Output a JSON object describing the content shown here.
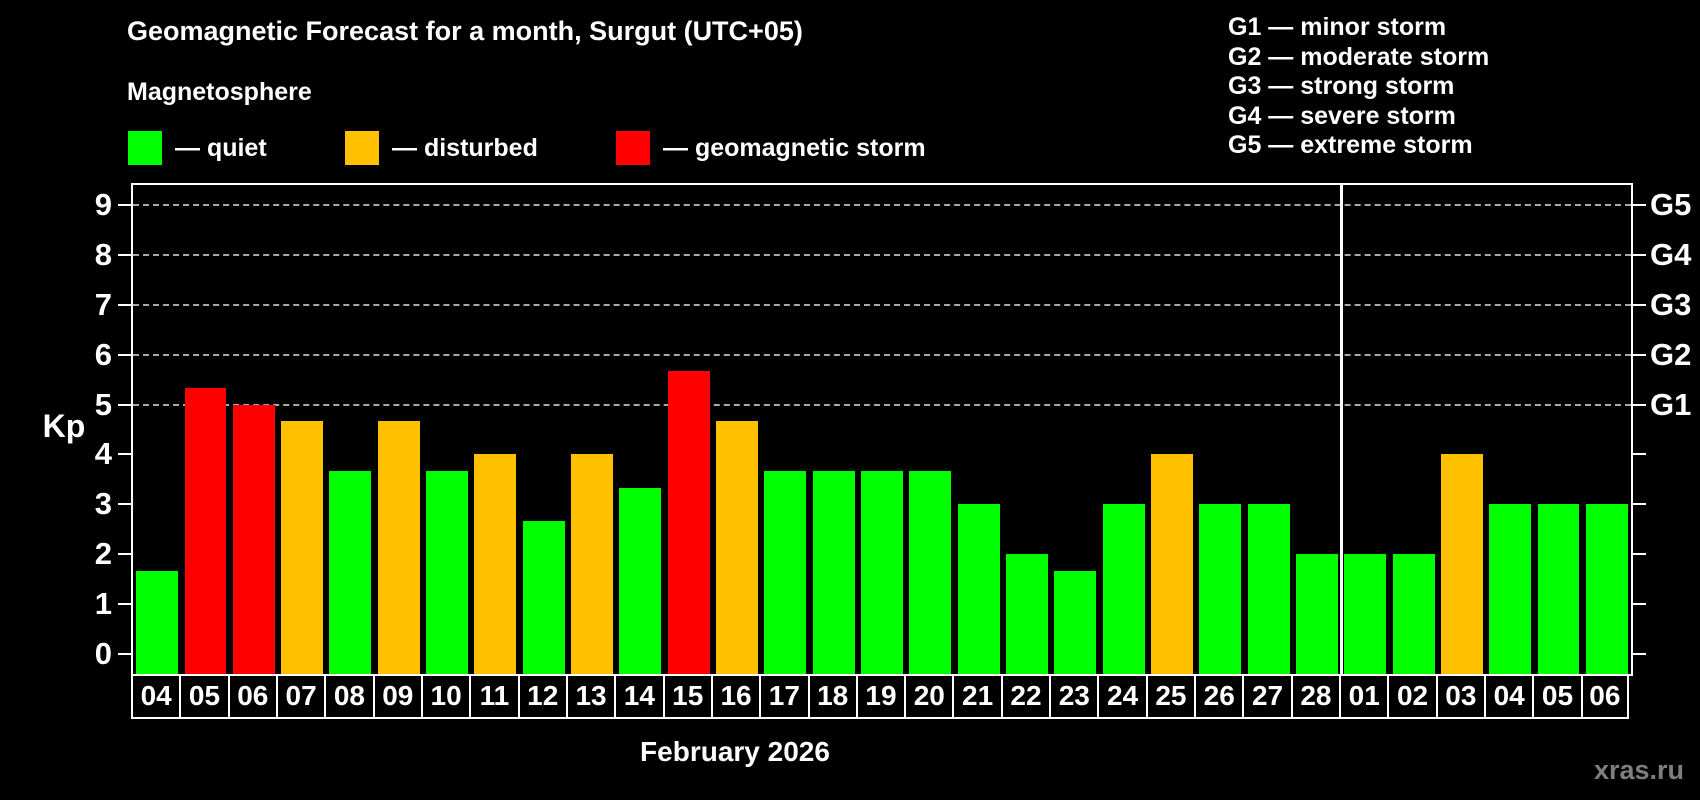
{
  "title": "Geomagnetic Forecast for a month, Surgut (UTC+05)",
  "subtitle": "Magnetosphere",
  "status_legend": [
    {
      "key": "quiet",
      "label": "— quiet",
      "color": "#00ff00"
    },
    {
      "key": "disturbed",
      "label": "— disturbed",
      "color": "#ffc000"
    },
    {
      "key": "storm",
      "label": "— geomagnetic storm",
      "color": "#ff0000"
    }
  ],
  "g_legend": [
    "G1 — minor storm",
    "G2 — moderate storm",
    "G3 — strong storm",
    "G4 — severe storm",
    "G5 — extreme storm"
  ],
  "y_axis": {
    "label": "Kp",
    "ticks": [
      0,
      1,
      2,
      3,
      4,
      5,
      6,
      7,
      8,
      9
    ]
  },
  "right_axis": {
    "labels": [
      {
        "kp": 5,
        "text": "G1"
      },
      {
        "kp": 6,
        "text": "G2"
      },
      {
        "kp": 7,
        "text": "G3"
      },
      {
        "kp": 8,
        "text": "G4"
      },
      {
        "kp": 9,
        "text": "G5"
      }
    ]
  },
  "x_axis": {
    "label": "February 2026"
  },
  "watermark": "xras.ru",
  "chart_data": {
    "type": "bar",
    "title": "Geomagnetic Forecast for a month, Surgut (UTC+05)",
    "xlabel": "February 2026",
    "ylabel": "Kp",
    "ylim": [
      0,
      9
    ],
    "grid": "dashed horizontal at Kp 5-9 only",
    "gridlines_at": [
      5,
      6,
      7,
      8,
      9
    ],
    "legend_position": "top",
    "month_separator_after_index": 25,
    "categories": [
      "04",
      "05",
      "06",
      "07",
      "08",
      "09",
      "10",
      "11",
      "12",
      "13",
      "14",
      "15",
      "16",
      "17",
      "18",
      "19",
      "20",
      "21",
      "22",
      "23",
      "24",
      "25",
      "26",
      "27",
      "28",
      "01",
      "02",
      "03",
      "04",
      "05",
      "06"
    ],
    "values": [
      1.67,
      5.33,
      5.0,
      4.67,
      3.67,
      4.67,
      3.67,
      4.0,
      2.67,
      4.0,
      3.33,
      5.67,
      4.67,
      3.67,
      3.67,
      3.67,
      3.67,
      3.0,
      2.0,
      1.67,
      3.0,
      4.0,
      3.0,
      3.0,
      2.0,
      2.0,
      2.0,
      4.0,
      3.0,
      3.0,
      3.0
    ],
    "statuses": [
      "quiet",
      "storm",
      "storm",
      "disturbed",
      "quiet",
      "disturbed",
      "quiet",
      "disturbed",
      "quiet",
      "disturbed",
      "quiet",
      "storm",
      "disturbed",
      "quiet",
      "quiet",
      "quiet",
      "quiet",
      "quiet",
      "quiet",
      "quiet",
      "quiet",
      "disturbed",
      "quiet",
      "quiet",
      "quiet",
      "quiet",
      "quiet",
      "disturbed",
      "quiet",
      "quiet",
      "quiet"
    ],
    "colors": {
      "quiet": "#00ff00",
      "disturbed": "#ffc000",
      "storm": "#ff0000"
    }
  }
}
